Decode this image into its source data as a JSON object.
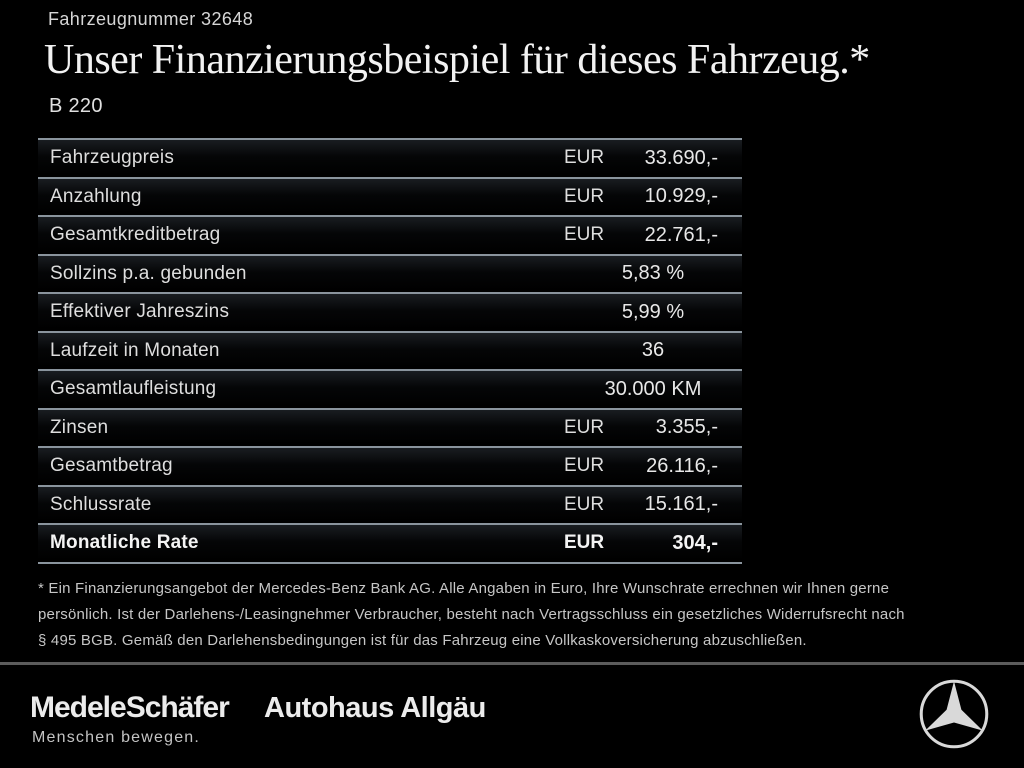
{
  "header": {
    "vehicle_number": "Fahrzeugnummer 32648",
    "title": "Unser Finanzierungsbeispiel für dieses Fahrzeug.*",
    "model": "B 220"
  },
  "finance_table": {
    "rows": [
      {
        "label": "Fahrzeugpreis",
        "currency": "EUR",
        "value": "33.690,-",
        "bold": false
      },
      {
        "label": "Anzahlung",
        "currency": "EUR",
        "value": "10.929,-",
        "bold": false
      },
      {
        "label": "Gesamtkreditbetrag",
        "currency": "EUR",
        "value": "22.761,-",
        "bold": false
      },
      {
        "label": "Sollzins p.a. gebunden",
        "currency": "",
        "value": "5,83 %",
        "bold": false
      },
      {
        "label": "Effektiver Jahreszins",
        "currency": "",
        "value": "5,99 %",
        "bold": false
      },
      {
        "label": "Laufzeit in Monaten",
        "currency": "",
        "value": "36",
        "bold": false
      },
      {
        "label": "Gesamtlaufleistung",
        "currency": "",
        "value": "30.000 KM",
        "bold": false
      },
      {
        "label": "Zinsen",
        "currency": "EUR",
        "value": "3.355,-",
        "bold": false
      },
      {
        "label": "Gesamtbetrag",
        "currency": "EUR",
        "value": "26.116,-",
        "bold": false
      },
      {
        "label": "Schlussrate",
        "currency": "EUR",
        "value": "15.161,-",
        "bold": false
      },
      {
        "label": "Monatliche Rate",
        "currency": "EUR",
        "value": "304,-",
        "bold": true
      }
    ]
  },
  "footnote": {
    "lines": [
      "* Ein Finanzierungsangebot der Mercedes-Benz Bank AG. Alle Angaben in Euro, Ihre Wunschrate errechnen wir Ihnen gerne",
      "persönlich. Ist der Darlehens-/Leasingnehmer Verbraucher, besteht nach Vertragsschluss ein gesetzliches Widerrufsrecht nach",
      "§ 495 BGB. Gemäß den Darlehensbedingungen ist für das Fahrzeug eine Vollkaskoversicherung abzuschließen."
    ]
  },
  "footer": {
    "dealer_name": "MedeleSchäfer",
    "dealer_tagline": "Menschen bewegen.",
    "dealer_name_secondary": "Autohaus Allgäu",
    "brand_icon": "mercedes-star-icon"
  },
  "colors": {
    "background": "#000000",
    "text_primary": "#f2f2f2",
    "text_secondary": "#c6c6c6",
    "table_line": "#8a949d",
    "footer_divider": "#5c5c5c"
  }
}
